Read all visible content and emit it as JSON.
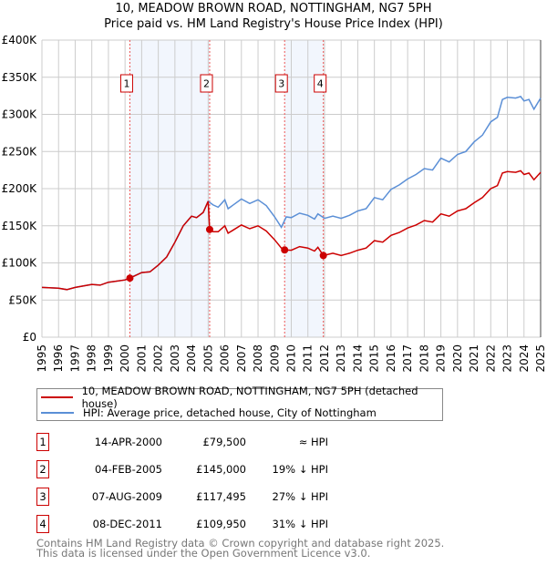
{
  "title": "10, MEADOW BROWN ROAD, NOTTINGHAM, NG7 5PH",
  "subtitle": "Price paid vs. HM Land Registry's House Price Index (HPI)",
  "chart_data": {
    "type": "line",
    "title": "10, MEADOW BROWN ROAD, NOTTINGHAM, NG7 5PH",
    "subtitle": "Price paid vs. HM Land Registry's House Price Index (HPI)",
    "xlim": [
      1995,
      2025
    ],
    "ylim": [
      0,
      400000
    ],
    "grid": true,
    "x_ticks": [
      "1995",
      "1996",
      "1997",
      "1998",
      "1999",
      "2000",
      "2001",
      "2002",
      "2003",
      "2004",
      "2005",
      "2006",
      "2007",
      "2008",
      "2009",
      "2010",
      "2011",
      "2012",
      "2013",
      "2014",
      "2015",
      "2016",
      "2017",
      "2018",
      "2019",
      "2020",
      "2021",
      "2022",
      "2023",
      "2024",
      "2025"
    ],
    "y_ticks": [
      {
        "v": 0,
        "label": "£0"
      },
      {
        "v": 50000,
        "label": "£50K"
      },
      {
        "v": 100000,
        "label": "£100K"
      },
      {
        "v": 150000,
        "label": "£150K"
      },
      {
        "v": 200000,
        "label": "£200K"
      },
      {
        "v": 250000,
        "label": "£250K"
      },
      {
        "v": 300000,
        "label": "£300K"
      },
      {
        "v": 350000,
        "label": "£350K"
      },
      {
        "v": 400000,
        "label": "£400K"
      }
    ],
    "shaded_ranges": [
      [
        2000.29,
        2005.09
      ],
      [
        2009.6,
        2011.93
      ]
    ],
    "series": [
      {
        "name": "HPI: Average price, detached house, City of Nottingham",
        "color": "#5b8fd6",
        "x": [
          1995,
          1996,
          1996.5,
          1997,
          1998,
          1998.5,
          1999,
          2000,
          2000.3,
          2001,
          2001.5,
          2002,
          2002.5,
          2003,
          2003.5,
          2004,
          2004.3,
          2004.7,
          2005,
          2005.3,
          2005.6,
          2006,
          2006.2,
          2007,
          2007.5,
          2008,
          2008.5,
          2009,
          2009.4,
          2009.7,
          2010,
          2010.5,
          2011,
          2011.4,
          2011.6,
          2012,
          2012.5,
          2013,
          2013.5,
          2014,
          2014.5,
          2015,
          2015.5,
          2016,
          2016.5,
          2017,
          2017.5,
          2018,
          2018.5,
          2019,
          2019.5,
          2020,
          2020.5,
          2021,
          2021.5,
          2022,
          2022.4,
          2022.7,
          2023,
          2023.5,
          2023.8,
          2024,
          2024.3,
          2024.6,
          2025
        ],
        "y": [
          67,
          66,
          64,
          67,
          71,
          70,
          74,
          77,
          80,
          87,
          88,
          97,
          108,
          128,
          150,
          163,
          161,
          168,
          183,
          178,
          175,
          185,
          173,
          186,
          180,
          185,
          177,
          162,
          148,
          162,
          161,
          167,
          164,
          159,
          166,
          160,
          163,
          160,
          164,
          170,
          173,
          188,
          185,
          199,
          205,
          213,
          219,
          227,
          225,
          241,
          236,
          246,
          250,
          263,
          272,
          290,
          296,
          320,
          323,
          322,
          324,
          318,
          320,
          307,
          322
        ]
      },
      {
        "name": "10, MEADOW BROWN ROAD, NOTTINGHAM, NG7 5PH (detached house)",
        "color": "#cc0000",
        "x": [
          1995,
          1996,
          1996.5,
          1997,
          1998,
          1998.5,
          1999,
          2000,
          2000.3,
          2001,
          2001.5,
          2002,
          2002.5,
          2003,
          2003.5,
          2004,
          2004.3,
          2004.7,
          2005,
          2005.09,
          2005.3,
          2005.6,
          2006,
          2006.2,
          2007,
          2007.5,
          2008,
          2008.5,
          2009,
          2009.4,
          2009.6,
          2010,
          2010.5,
          2011,
          2011.4,
          2011.6,
          2011.93,
          2012.5,
          2013,
          2013.5,
          2014,
          2014.5,
          2015,
          2015.5,
          2016,
          2016.5,
          2017,
          2017.5,
          2018,
          2018.5,
          2019,
          2019.5,
          2020,
          2020.5,
          2021,
          2021.5,
          2022,
          2022.4,
          2022.7,
          2023,
          2023.5,
          2023.8,
          2024,
          2024.3,
          2024.6,
          2025
        ],
        "y": [
          67,
          66,
          64,
          67,
          71,
          70,
          74,
          77,
          79.5,
          87,
          88,
          97,
          108,
          128,
          150,
          163,
          161,
          168,
          183,
          145,
          142,
          142,
          150,
          140,
          151,
          146,
          150,
          143,
          131,
          120,
          117.5,
          117,
          122,
          120,
          116,
          121,
          110,
          113,
          110,
          113,
          117,
          120,
          130,
          128,
          137,
          141,
          147,
          151,
          157,
          155,
          166,
          163,
          170,
          173,
          181,
          188,
          200,
          204,
          221,
          223,
          222,
          224,
          219,
          221,
          212,
          222
        ]
      }
    ],
    "y_units": "£K",
    "sales": [
      {
        "n": "1",
        "x": 2000.29,
        "price": 79500
      },
      {
        "n": "2",
        "x": 2005.09,
        "price": 145000
      },
      {
        "n": "3",
        "x": 2009.6,
        "price": 117495
      },
      {
        "n": "4",
        "x": 2011.93,
        "price": 109950
      }
    ]
  },
  "legend": [
    {
      "label": "10, MEADOW BROWN ROAD, NOTTINGHAM, NG7 5PH (detached house)",
      "color": "#cc0000"
    },
    {
      "label": "HPI: Average price, detached house, City of Nottingham",
      "color": "#5b8fd6"
    }
  ],
  "transactions": [
    {
      "n": "1",
      "date": "14-APR-2000",
      "price": "£79,500",
      "hpi": "≈ HPI"
    },
    {
      "n": "2",
      "date": "04-FEB-2005",
      "price": "£145,000",
      "hpi": "19% ↓ HPI"
    },
    {
      "n": "3",
      "date": "07-AUG-2009",
      "price": "£117,495",
      "hpi": "27% ↓ HPI"
    },
    {
      "n": "4",
      "date": "08-DEC-2011",
      "price": "£109,950",
      "hpi": "31% ↓ HPI"
    }
  ],
  "footer": {
    "line1": "Contains HM Land Registry data © Crown copyright and database right 2025.",
    "line2": "This data is licensed under the Open Government Licence v3.0."
  }
}
